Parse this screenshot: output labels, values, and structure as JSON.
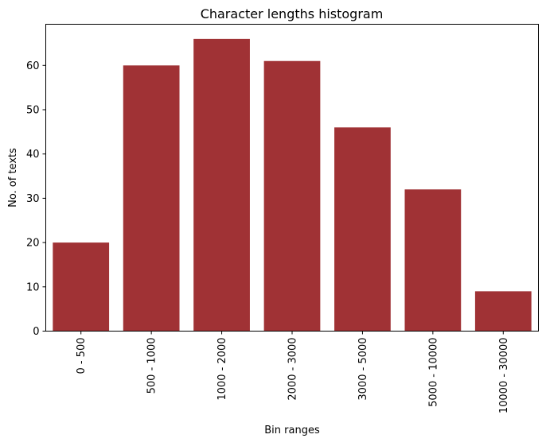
{
  "chart_data": {
    "type": "bar",
    "title": "Character lengths histogram",
    "xlabel": "Bin ranges",
    "ylabel": "No. of texts",
    "categories": [
      "0 - 500",
      "500 - 1000",
      "1000 - 2000",
      "2000 - 3000",
      "3000 - 5000",
      "5000 - 10000",
      "10000 - 30000"
    ],
    "values": [
      20,
      60,
      66,
      61,
      46,
      32,
      9
    ],
    "ylim": [
      0,
      69.3
    ],
    "yticks": [
      0,
      10,
      20,
      30,
      40,
      50,
      60
    ],
    "grid": false,
    "legend": "none",
    "bar_color": "#a03235"
  }
}
